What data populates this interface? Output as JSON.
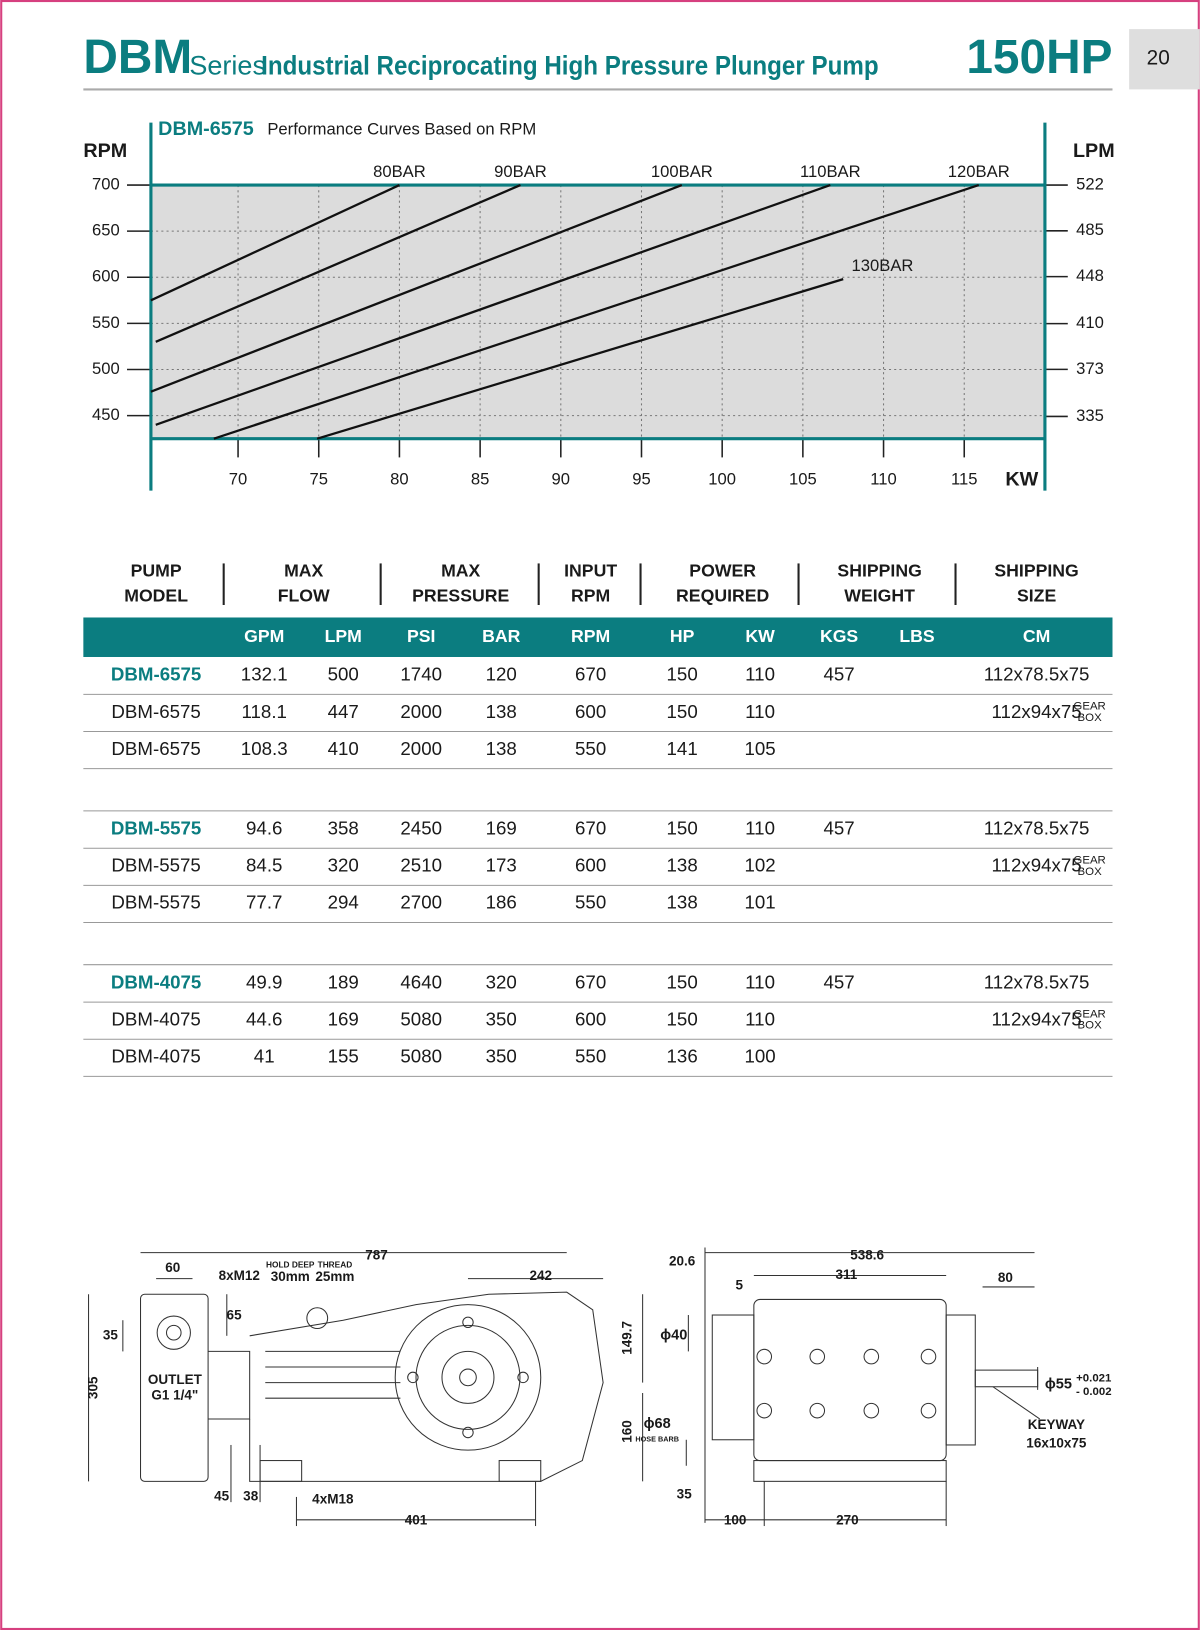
{
  "header": {
    "logo": "DBM",
    "series": "Series",
    "title": "Industrial Reciprocating High Pressure Plunger Pump",
    "hp": "150HP",
    "page": 20
  },
  "chart_data": {
    "type": "line",
    "title": "DBM-6575",
    "subtitle": "Performance Curves Based on RPM",
    "ylabel": "RPM",
    "y2label": "LPM",
    "xlabel": "KW",
    "xlim": [
      64.6,
      120
    ],
    "xticks": [
      70,
      75,
      80,
      85,
      90,
      95,
      100,
      105,
      110,
      115
    ],
    "ylim": [
      425,
      700
    ],
    "yticks": [
      450,
      500,
      550,
      600,
      650,
      700
    ],
    "y2lim": [
      317,
      522
    ],
    "y2ticks": [
      335,
      373,
      410,
      448,
      485,
      522
    ],
    "grid": true,
    "series": [
      {
        "name": "80BAR",
        "color": "#111111",
        "x": [
          64.6,
          80
        ],
        "values": [
          575,
          700
        ]
      },
      {
        "name": "90BAR",
        "color": "#111111",
        "x": [
          64.9,
          87.5
        ],
        "values": [
          530,
          700
        ]
      },
      {
        "name": "100BAR",
        "color": "#111111",
        "x": [
          64.6,
          97.5
        ],
        "values": [
          476,
          700
        ]
      },
      {
        "name": "110BAR",
        "color": "#111111",
        "x": [
          64.9,
          106.7
        ],
        "values": [
          440,
          700
        ]
      },
      {
        "name": "120BAR",
        "color": "#111111",
        "x": [
          68.5,
          115.9
        ],
        "values": [
          425,
          700
        ]
      },
      {
        "name": "130BAR",
        "color": "#111111",
        "x": [
          74.9,
          107.5
        ],
        "values": [
          425,
          598
        ]
      }
    ]
  },
  "table": {
    "header": [
      [
        "PUMP",
        "MODEL"
      ],
      [
        "MAX",
        "FLOW"
      ],
      [
        "MAX",
        "PRESSURE"
      ],
      [
        "INPUT",
        "RPM"
      ],
      [
        "POWER",
        "REQUIRED"
      ],
      [
        "SHIPPING",
        "WEIGHT"
      ],
      [
        "SHIPPING",
        "SIZE"
      ]
    ],
    "subheader": [
      "GPM",
      "LPM",
      "PSI",
      "BAR",
      "RPM",
      "HP",
      "KW",
      "KGS",
      "LBS",
      "CM"
    ],
    "groups": [
      {
        "rows": [
          {
            "cells": [
              "DBM-6575",
              132.1,
              500,
              1740,
              120,
              670,
              150,
              110,
              457,
              null,
              "112x78.5x75"
            ]
          },
          {
            "cells": [
              "DBM-6575",
              118.1,
              447,
              2000,
              138,
              600,
              150,
              110,
              null,
              null,
              "112x94x75"
            ],
            "note": [
              "GEAR",
              "BOX"
            ]
          },
          {
            "cells": [
              "DBM-6575",
              108.3,
              410,
              2000,
              138,
              550,
              141,
              105,
              null,
              null,
              null
            ]
          }
        ]
      },
      {
        "rows": [
          {
            "cells": [
              "DBM-5575",
              94.6,
              358,
              2450,
              169,
              670,
              150,
              110,
              457,
              null,
              "112x78.5x75"
            ]
          },
          {
            "cells": [
              "DBM-5575",
              84.5,
              320,
              2510,
              173,
              600,
              138,
              102,
              null,
              null,
              "112x94x75"
            ],
            "note": [
              "GEAR",
              "BOX"
            ]
          },
          {
            "cells": [
              "DBM-5575",
              77.7,
              294,
              2700,
              186,
              550,
              138,
              101,
              null,
              null,
              null
            ]
          }
        ]
      },
      {
        "rows": [
          {
            "cells": [
              "DBM-4075",
              49.9,
              189,
              4640,
              320,
              670,
              150,
              110,
              457,
              null,
              "112x78.5x75"
            ]
          },
          {
            "cells": [
              "DBM-4075",
              44.6,
              169,
              5080,
              350,
              600,
              150,
              110,
              null,
              null,
              "112x94x75"
            ],
            "note": [
              "GEAR",
              "BOX"
            ]
          },
          {
            "cells": [
              "DBM-4075",
              41,
              155,
              5080,
              350,
              550,
              136,
              100,
              null,
              null,
              null
            ]
          }
        ]
      }
    ]
  },
  "drawing": {
    "labels": [
      "60",
      "8xM12",
      "HOLD DEEP",
      "30mm",
      "THREAD",
      "25mm",
      "787",
      "242",
      "65",
      "35",
      "305",
      "OUTLET",
      "G1 1/4\"",
      "45",
      "38",
      "4xM18",
      "401",
      "149.7",
      "160",
      "20.6",
      "538.6",
      "5",
      "311",
      "80",
      "ϕ40",
      "ϕ68",
      "HOSE BARB",
      "35",
      "100",
      "270",
      "ϕ55",
      "+0.021",
      "- 0.002",
      "KEYWAY",
      "16x10x75"
    ]
  }
}
